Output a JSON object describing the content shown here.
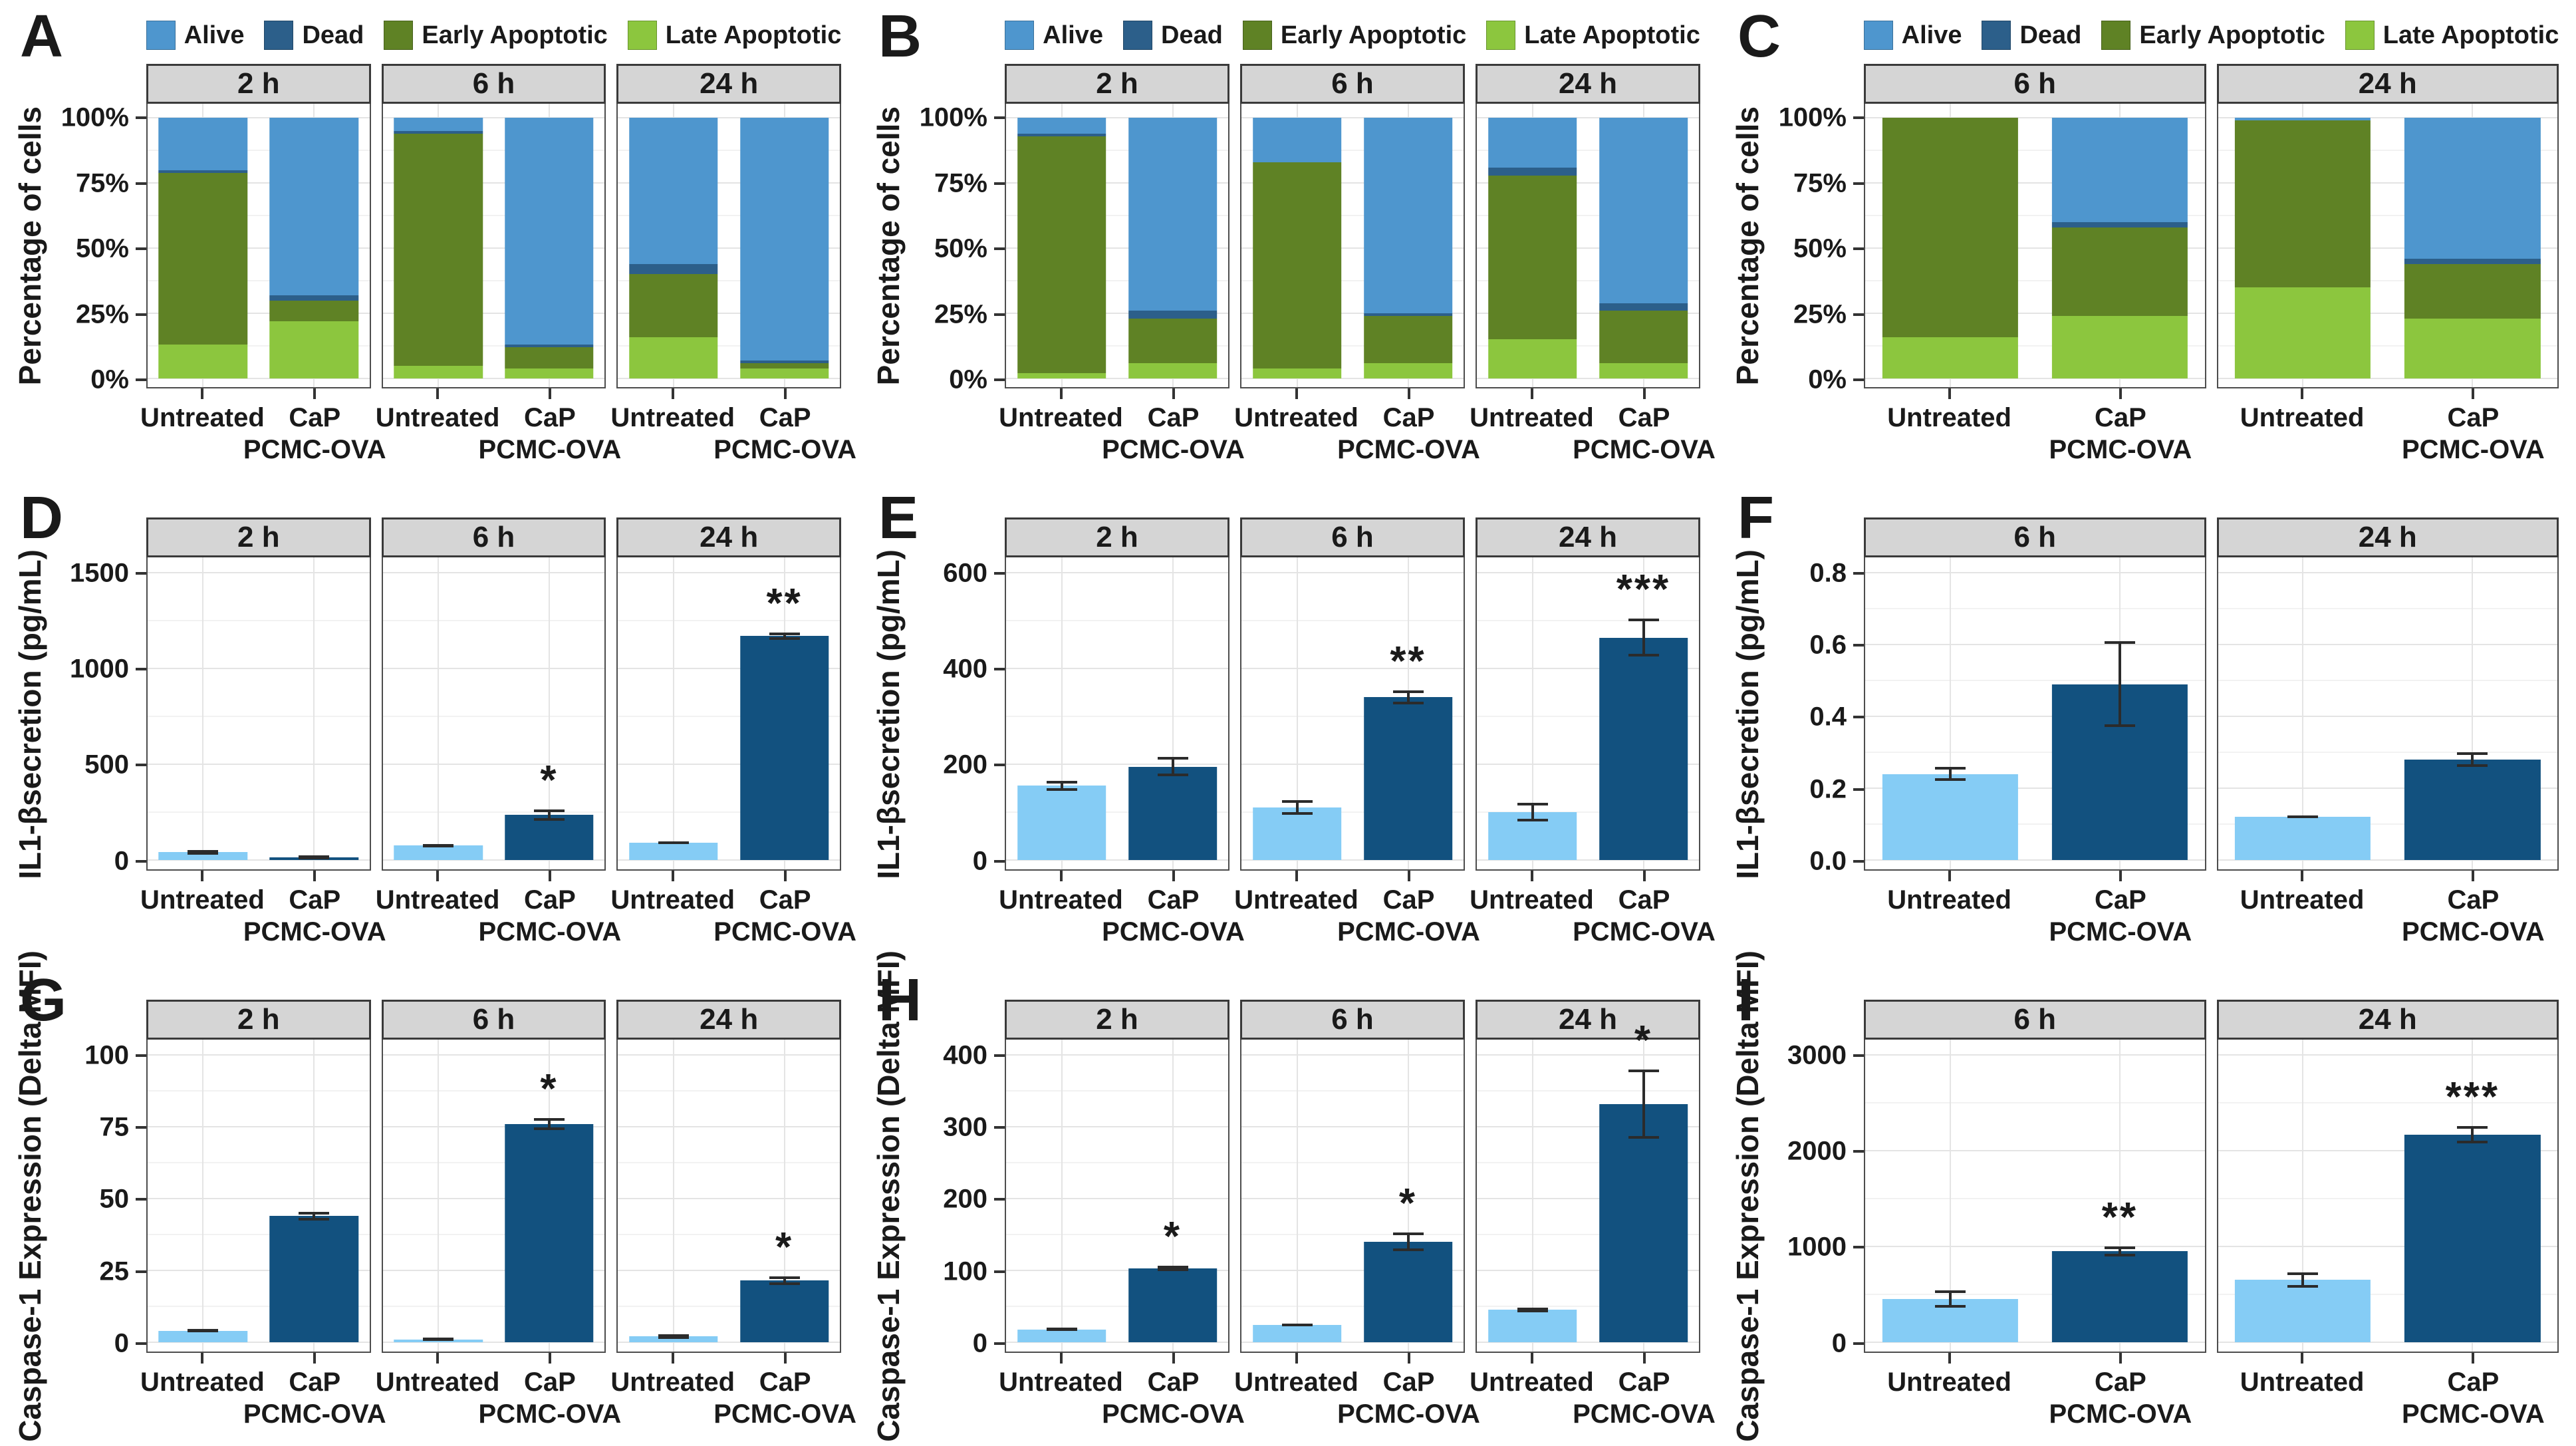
{
  "colors": {
    "alive": "#4E96CE",
    "dead": "#2C5F8A",
    "early": "#5F8225",
    "late": "#8CC63E",
    "untreated_bar": "#85CCF5",
    "treated_bar": "#12517F",
    "error": "#2b2b2b",
    "strip_bg": "#D5D5D5",
    "grid_major": "#E4E4E4",
    "grid_minor": "#F2F2F2",
    "panel_border": "#4D4D4D"
  },
  "legend": [
    {
      "label": "Alive",
      "key": "alive"
    },
    {
      "label": "Dead",
      "key": "dead"
    },
    {
      "label": "Early Apoptotic",
      "key": "early"
    },
    {
      "label": "Late Apoptotic",
      "key": "late"
    }
  ],
  "panels": [
    {
      "id": "A",
      "kind": "stacked",
      "has_legend": true,
      "y_title": "Percentage of cells",
      "ymax": 100,
      "y_ticks": [
        {
          "v": 0,
          "label": "0%"
        },
        {
          "v": 25,
          "label": "25%"
        },
        {
          "v": 50,
          "label": "50%"
        },
        {
          "v": 75,
          "label": "75%"
        },
        {
          "v": 100,
          "label": "100%"
        }
      ],
      "facets": [
        {
          "title": "2 h",
          "bars": [
            {
              "label_lines": [
                "Untreated"
              ],
              "stack": {
                "late": 13,
                "early": 66,
                "dead": 1,
                "alive": 20
              }
            },
            {
              "label_lines": [
                "CaP",
                "PCMC-OVA"
              ],
              "stack": {
                "late": 22,
                "early": 8,
                "dead": 2,
                "alive": 68
              }
            }
          ]
        },
        {
          "title": "6 h",
          "bars": [
            {
              "label_lines": [
                "Untreated"
              ],
              "stack": {
                "late": 5,
                "early": 89,
                "dead": 1,
                "alive": 5
              }
            },
            {
              "label_lines": [
                "CaP",
                "PCMC-OVA"
              ],
              "stack": {
                "late": 4,
                "early": 8,
                "dead": 1,
                "alive": 87
              }
            }
          ]
        },
        {
          "title": "24 h",
          "bars": [
            {
              "label_lines": [
                "Untreated"
              ],
              "stack": {
                "late": 16,
                "early": 24,
                "dead": 4,
                "alive": 56
              }
            },
            {
              "label_lines": [
                "CaP",
                "PCMC-OVA"
              ],
              "stack": {
                "late": 4,
                "early": 2,
                "dead": 1,
                "alive": 93
              }
            }
          ]
        }
      ]
    },
    {
      "id": "B",
      "kind": "stacked",
      "has_legend": true,
      "y_title": "Percentage of cells",
      "ymax": 100,
      "y_ticks": [
        {
          "v": 0,
          "label": "0%"
        },
        {
          "v": 25,
          "label": "25%"
        },
        {
          "v": 50,
          "label": "50%"
        },
        {
          "v": 75,
          "label": "75%"
        },
        {
          "v": 100,
          "label": "100%"
        }
      ],
      "facets": [
        {
          "title": "2 h",
          "bars": [
            {
              "label_lines": [
                "Untreated"
              ],
              "stack": {
                "late": 2,
                "early": 91,
                "dead": 1,
                "alive": 6
              }
            },
            {
              "label_lines": [
                "CaP",
                "PCMC-OVA"
              ],
              "stack": {
                "late": 6,
                "early": 17,
                "dead": 3,
                "alive": 74
              }
            }
          ]
        },
        {
          "title": "6 h",
          "bars": [
            {
              "label_lines": [
                "Untreated"
              ],
              "stack": {
                "late": 4,
                "early": 79,
                "dead": 0,
                "alive": 17
              }
            },
            {
              "label_lines": [
                "CaP",
                "PCMC-OVA"
              ],
              "stack": {
                "late": 6,
                "early": 18,
                "dead": 1,
                "alive": 75
              }
            }
          ]
        },
        {
          "title": "24 h",
          "bars": [
            {
              "label_lines": [
                "Untreated"
              ],
              "stack": {
                "late": 15,
                "early": 63,
                "dead": 3,
                "alive": 19
              }
            },
            {
              "label_lines": [
                "CaP",
                "PCMC-OVA"
              ],
              "stack": {
                "late": 6,
                "early": 20,
                "dead": 3,
                "alive": 71
              }
            }
          ]
        }
      ]
    },
    {
      "id": "C",
      "kind": "stacked",
      "has_legend": true,
      "y_title": "Percentage of cells",
      "ymax": 100,
      "y_ticks": [
        {
          "v": 0,
          "label": "0%"
        },
        {
          "v": 25,
          "label": "25%"
        },
        {
          "v": 50,
          "label": "50%"
        },
        {
          "v": 75,
          "label": "75%"
        },
        {
          "v": 100,
          "label": "100%"
        }
      ],
      "facets": [
        {
          "title": "6 h",
          "bars": [
            {
              "label_lines": [
                "Untreated"
              ],
              "stack": {
                "late": 16,
                "early": 84,
                "dead": 0,
                "alive": 0
              }
            },
            {
              "label_lines": [
                "CaP",
                "PCMC-OVA"
              ],
              "stack": {
                "late": 24,
                "early": 34,
                "dead": 2,
                "alive": 40
              }
            }
          ]
        },
        {
          "title": "24 h",
          "bars": [
            {
              "label_lines": [
                "Untreated"
              ],
              "stack": {
                "late": 35,
                "early": 64,
                "dead": 0,
                "alive": 1
              }
            },
            {
              "label_lines": [
                "CaP",
                "PCMC-OVA"
              ],
              "stack": {
                "late": 23,
                "early": 21,
                "dead": 2,
                "alive": 54
              }
            }
          ]
        }
      ]
    },
    {
      "id": "D",
      "kind": "bars",
      "has_legend": false,
      "y_title": "IL1-βsecretion (pg/mL)",
      "ymax": 1500,
      "y_ticks": [
        {
          "v": 0,
          "label": "0"
        },
        {
          "v": 500,
          "label": "500"
        },
        {
          "v": 1000,
          "label": "1000"
        },
        {
          "v": 1500,
          "label": "1500"
        }
      ],
      "facets": [
        {
          "title": "2 h",
          "bars": [
            {
              "label_lines": [
                "Untreated"
              ],
              "value": 40,
              "err": 12,
              "sig": ""
            },
            {
              "label_lines": [
                "CaP",
                "PCMC-OVA"
              ],
              "value": 15,
              "err": 10,
              "sig": ""
            }
          ]
        },
        {
          "title": "6 h",
          "bars": [
            {
              "label_lines": [
                "Untreated"
              ],
              "value": 75,
              "err": 8,
              "sig": ""
            },
            {
              "label_lines": [
                "CaP",
                "PCMC-OVA"
              ],
              "value": 235,
              "err": 30,
              "sig": "*"
            }
          ]
        },
        {
          "title": "24 h",
          "bars": [
            {
              "label_lines": [
                "Untreated"
              ],
              "value": 90,
              "err": 6,
              "sig": ""
            },
            {
              "label_lines": [
                "CaP",
                "PCMC-OVA"
              ],
              "value": 1170,
              "err": 18,
              "sig": "**"
            }
          ]
        }
      ]
    },
    {
      "id": "E",
      "kind": "bars",
      "has_legend": false,
      "y_title": "IL1-βsecretion (pg/mL)",
      "ymax": 600,
      "y_ticks": [
        {
          "v": 0,
          "label": "0"
        },
        {
          "v": 200,
          "label": "200"
        },
        {
          "v": 400,
          "label": "400"
        },
        {
          "v": 600,
          "label": "600"
        }
      ],
      "facets": [
        {
          "title": "2 h",
          "bars": [
            {
              "label_lines": [
                "Untreated"
              ],
              "value": 155,
              "err": 10,
              "sig": ""
            },
            {
              "label_lines": [
                "CaP",
                "PCMC-OVA"
              ],
              "value": 195,
              "err": 20,
              "sig": ""
            }
          ]
        },
        {
          "title": "6 h",
          "bars": [
            {
              "label_lines": [
                "Untreated"
              ],
              "value": 110,
              "err": 15,
              "sig": ""
            },
            {
              "label_lines": [
                "CaP",
                "PCMC-OVA"
              ],
              "value": 340,
              "err": 15,
              "sig": "**"
            }
          ]
        },
        {
          "title": "24 h",
          "bars": [
            {
              "label_lines": [
                "Untreated"
              ],
              "value": 100,
              "err": 20,
              "sig": ""
            },
            {
              "label_lines": [
                "CaP",
                "PCMC-OVA"
              ],
              "value": 465,
              "err": 40,
              "sig": "***"
            }
          ]
        }
      ]
    },
    {
      "id": "F",
      "kind": "bars",
      "has_legend": false,
      "y_title": "IL1-βsecretion (pg/mL)",
      "ymax": 0.8,
      "y_ticks": [
        {
          "v": 0,
          "label": "0.0"
        },
        {
          "v": 0.2,
          "label": "0.2"
        },
        {
          "v": 0.4,
          "label": "0.4"
        },
        {
          "v": 0.6,
          "label": "0.6"
        },
        {
          "v": 0.8,
          "label": "0.8"
        }
      ],
      "facets": [
        {
          "title": "6 h",
          "bars": [
            {
              "label_lines": [
                "Untreated"
              ],
              "value": 0.24,
              "err": 0.02,
              "sig": ""
            },
            {
              "label_lines": [
                "CaP",
                "PCMC-OVA"
              ],
              "value": 0.49,
              "err": 0.12,
              "sig": ""
            }
          ]
        },
        {
          "title": "24 h",
          "bars": [
            {
              "label_lines": [
                "Untreated"
              ],
              "value": 0.12,
              "err": 0.004,
              "sig": ""
            },
            {
              "label_lines": [
                "CaP",
                "PCMC-OVA"
              ],
              "value": 0.28,
              "err": 0.02,
              "sig": ""
            }
          ]
        }
      ]
    },
    {
      "id": "G",
      "kind": "bars",
      "has_legend": false,
      "y_title": "Caspase-1 Expression (Delta MFI)",
      "ymax": 100,
      "y_ticks": [
        {
          "v": 0,
          "label": "0"
        },
        {
          "v": 25,
          "label": "25"
        },
        {
          "v": 50,
          "label": "50"
        },
        {
          "v": 75,
          "label": "75"
        },
        {
          "v": 100,
          "label": "100"
        }
      ],
      "facets": [
        {
          "title": "2 h",
          "bars": [
            {
              "label_lines": [
                "Untreated"
              ],
              "value": 4,
              "err": 0.6,
              "sig": ""
            },
            {
              "label_lines": [
                "CaP",
                "PCMC-OVA"
              ],
              "value": 44,
              "err": 1.5,
              "sig": ""
            }
          ]
        },
        {
          "title": "6 h",
          "bars": [
            {
              "label_lines": [
                "Untreated"
              ],
              "value": 1,
              "err": 0.4,
              "sig": ""
            },
            {
              "label_lines": [
                "CaP",
                "PCMC-OVA"
              ],
              "value": 76,
              "err": 2,
              "sig": "*"
            }
          ]
        },
        {
          "title": "24 h",
          "bars": [
            {
              "label_lines": [
                "Untreated"
              ],
              "value": 2,
              "err": 0.8,
              "sig": ""
            },
            {
              "label_lines": [
                "CaP",
                "PCMC-OVA"
              ],
              "value": 21.5,
              "err": 1.5,
              "sig": "*"
            }
          ]
        }
      ]
    },
    {
      "id": "H",
      "kind": "bars",
      "has_legend": false,
      "y_title": "Caspase-1 Expression (Delta MFI)",
      "ymax": 400,
      "y_ticks": [
        {
          "v": 0,
          "label": "0"
        },
        {
          "v": 100,
          "label": "100"
        },
        {
          "v": 200,
          "label": "200"
        },
        {
          "v": 300,
          "label": "300"
        },
        {
          "v": 400,
          "label": "400"
        }
      ],
      "facets": [
        {
          "title": "2 h",
          "bars": [
            {
              "label_lines": [
                "Untreated"
              ],
              "value": 18,
              "err": 2,
              "sig": ""
            },
            {
              "label_lines": [
                "CaP",
                "PCMC-OVA"
              ],
              "value": 103,
              "err": 4,
              "sig": "*"
            }
          ]
        },
        {
          "title": "6 h",
          "bars": [
            {
              "label_lines": [
                "Untreated"
              ],
              "value": 24,
              "err": 2,
              "sig": ""
            },
            {
              "label_lines": [
                "CaP",
                "PCMC-OVA"
              ],
              "value": 140,
              "err": 13,
              "sig": "*"
            }
          ]
        },
        {
          "title": "24 h",
          "bars": [
            {
              "label_lines": [
                "Untreated"
              ],
              "value": 45,
              "err": 3,
              "sig": ""
            },
            {
              "label_lines": [
                "CaP",
                "PCMC-OVA"
              ],
              "value": 332,
              "err": 48,
              "sig": "*"
            }
          ]
        }
      ]
    },
    {
      "id": "I",
      "kind": "bars",
      "has_legend": false,
      "y_title": "Caspase-1 Expression (Delta MFI)",
      "ymax": 3000,
      "y_ticks": [
        {
          "v": 0,
          "label": "0"
        },
        {
          "v": 1000,
          "label": "1000"
        },
        {
          "v": 2000,
          "label": "2000"
        },
        {
          "v": 3000,
          "label": "3000"
        }
      ],
      "facets": [
        {
          "title": "6 h",
          "bars": [
            {
              "label_lines": [
                "Untreated"
              ],
              "value": 450,
              "err": 90,
              "sig": ""
            },
            {
              "label_lines": [
                "CaP",
                "PCMC-OVA"
              ],
              "value": 950,
              "err": 50,
              "sig": "**"
            }
          ]
        },
        {
          "title": "24 h",
          "bars": [
            {
              "label_lines": [
                "Untreated"
              ],
              "value": 650,
              "err": 80,
              "sig": ""
            },
            {
              "label_lines": [
                "CaP",
                "PCMC-OVA"
              ],
              "value": 2170,
              "err": 90,
              "sig": "***"
            }
          ]
        }
      ]
    }
  ],
  "chart_data": {
    "type": "bar",
    "note": "Faceted figure; panels A-C are 100% stacked bars, D-I grouped bars with SD error bars and significance stars.",
    "panels": "see panels key (same object) for full per-panel series, categories, axis ranges and tick labels"
  }
}
